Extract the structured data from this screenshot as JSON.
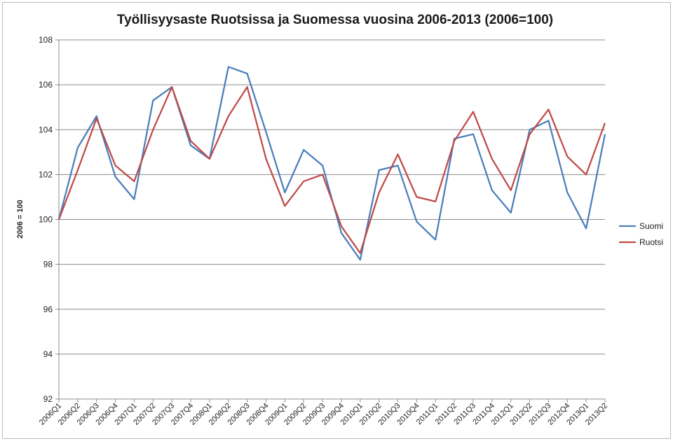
{
  "chart_data": {
    "type": "line",
    "title": "Työllisyysaste Ruotsissa ja Suomessa vuosina 2006-2013 (2006=100)",
    "xlabel": "",
    "ylabel": "2006 = 100",
    "ylim": [
      92,
      108
    ],
    "yticks": [
      92,
      94,
      96,
      98,
      100,
      102,
      104,
      106,
      108
    ],
    "grid": true,
    "legend_position": "right",
    "categories": [
      "2006Q1",
      "2006Q2",
      "2006Q3",
      "2006Q4",
      "2007Q1",
      "2007Q2",
      "2007Q3",
      "2007Q4",
      "2008Q1",
      "2008Q2",
      "2008Q3",
      "2008Q4",
      "2009Q1",
      "2009Q2",
      "2009Q3",
      "2009Q4",
      "2010Q1",
      "2010Q2",
      "2010Q3",
      "2010Q4",
      "2011Q1",
      "2011Q2",
      "2011Q3",
      "2011Q4",
      "2012Q1",
      "2012Q2",
      "2012Q3",
      "2012Q4",
      "2013Q1",
      "2013Q2"
    ],
    "series": [
      {
        "name": "Suomi",
        "color": "#4a7ebb",
        "values": [
          100.0,
          103.2,
          104.6,
          101.9,
          100.9,
          105.3,
          105.9,
          103.3,
          102.7,
          106.8,
          106.5,
          103.9,
          101.2,
          103.1,
          102.4,
          99.4,
          98.2,
          102.2,
          102.4,
          99.9,
          99.1,
          103.6,
          103.8,
          101.3,
          100.3,
          104.0,
          104.4,
          101.2,
          99.6,
          103.8
        ]
      },
      {
        "name": "Ruotsi",
        "color": "#be4b48",
        "values": [
          100.0,
          102.2,
          104.5,
          102.4,
          101.7,
          104.0,
          105.9,
          103.5,
          102.7,
          104.6,
          105.9,
          102.7,
          100.6,
          101.7,
          102.0,
          99.7,
          98.5,
          101.2,
          102.9,
          101.0,
          100.8,
          103.5,
          104.8,
          102.7,
          101.3,
          103.8,
          104.9,
          102.8,
          102.0,
          104.3
        ]
      }
    ]
  }
}
